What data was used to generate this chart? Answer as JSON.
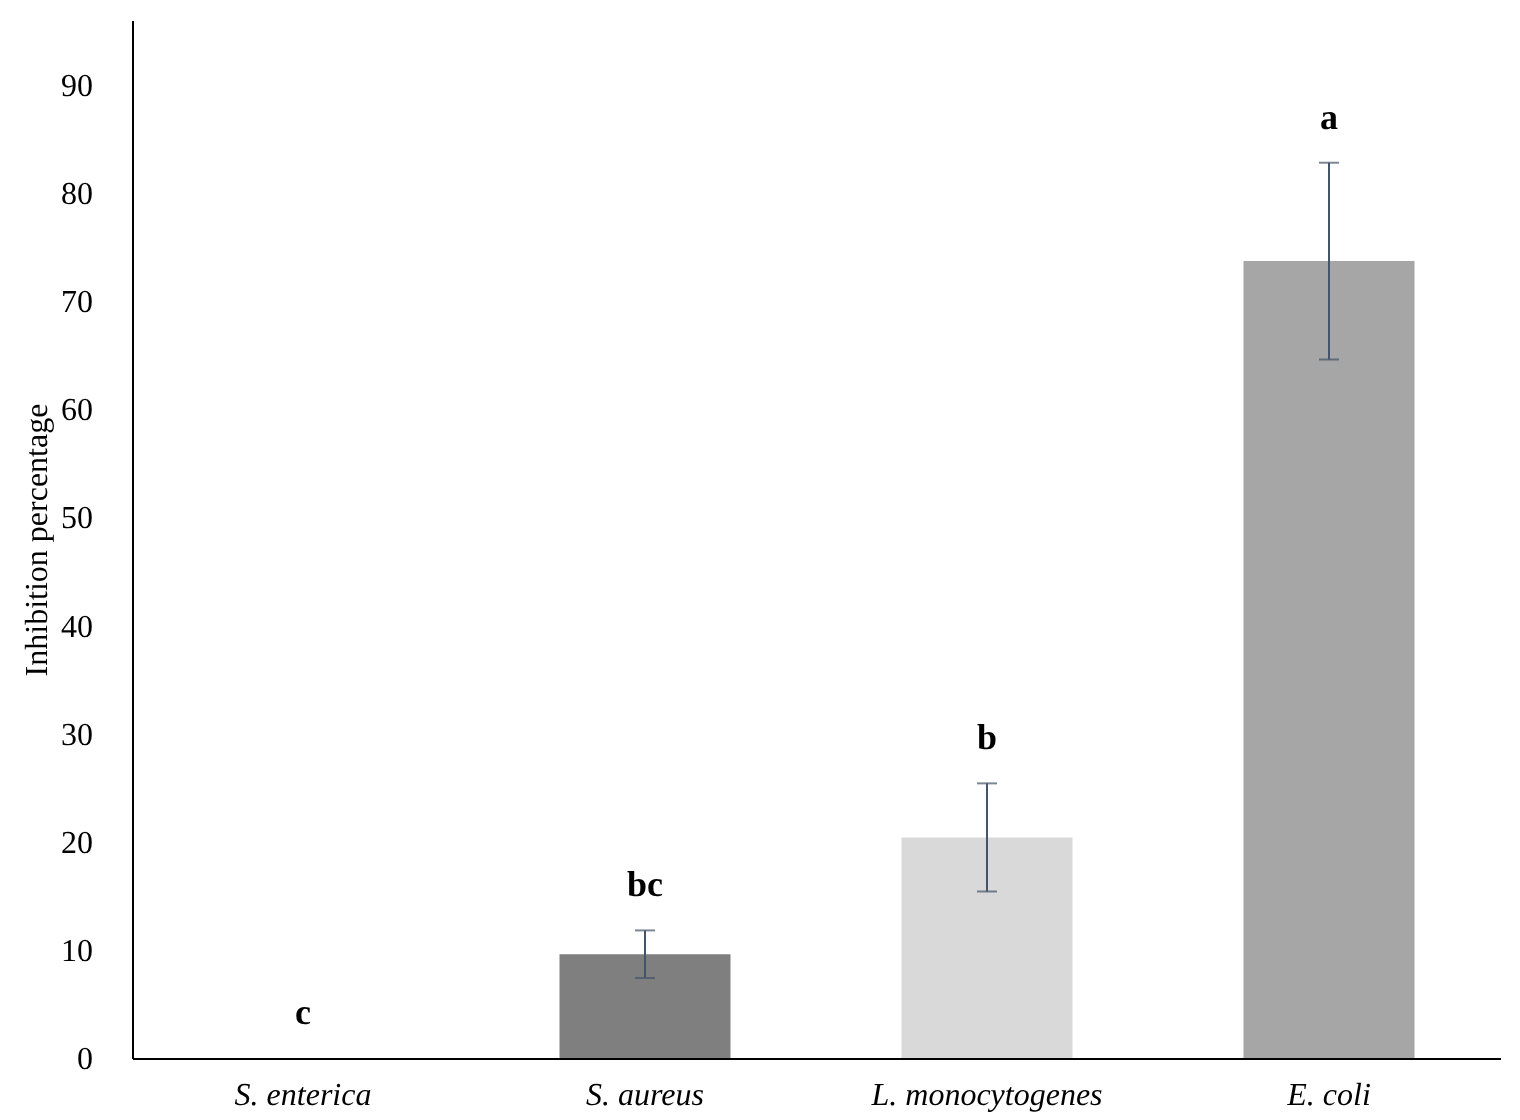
{
  "chart_data": {
    "type": "bar",
    "ylabel": "Inhibition  percentage",
    "categories": [
      "S. enterica",
      "S. aureus",
      "L. monocytogenes",
      "E. coli"
    ],
    "values": [
      0,
      9.6,
      20.4,
      73.7
    ],
    "colors": [
      "#a6a6a6",
      "#7f7f7f",
      "#d9d9d9",
      "#a6a6a6"
    ],
    "errors": [
      null,
      2.2,
      5,
      9.1
    ],
    "ylim": [
      0,
      96
    ],
    "yticks": [
      0,
      10,
      20,
      30,
      40,
      50,
      60,
      70,
      80,
      90
    ],
    "annotations": [
      "c",
      "bc",
      "b",
      "a"
    ]
  }
}
